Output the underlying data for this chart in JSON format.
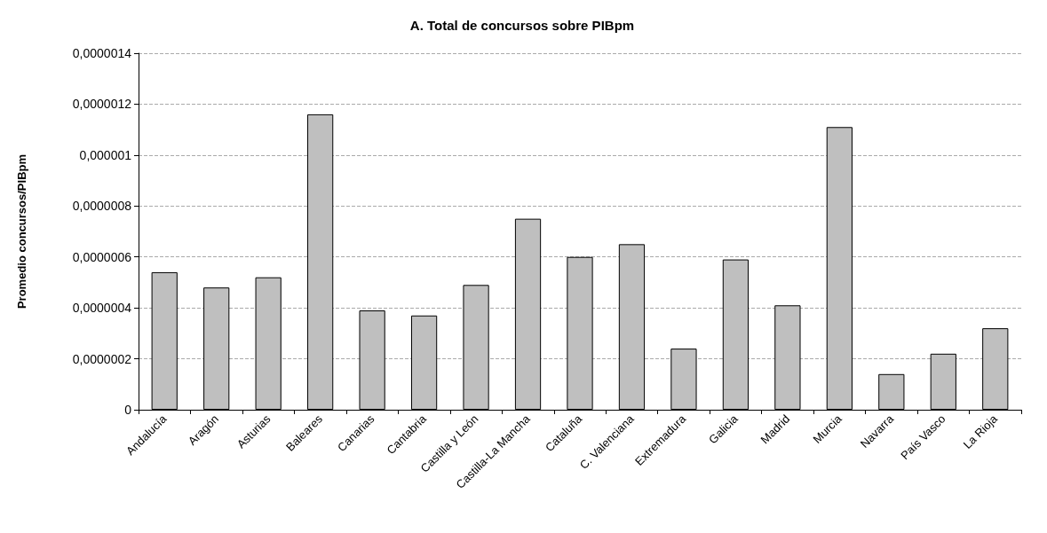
{
  "chart_data": {
    "type": "bar",
    "title": "A. Total de concursos sobre PIBpm",
    "ylabel": "Promedio concursos/PIBpm",
    "categories": [
      "Andalucía",
      "Aragón",
      "Asturias",
      "Baleares",
      "Canarias",
      "Cantabria",
      "Castilla y León",
      "Castilla-La Mancha",
      "Cataluña",
      "C. Valenciana",
      "Extremadura",
      "Galicia",
      "Madrid",
      "Murcia",
      "Navarra",
      "País Vasco",
      "La Rioja"
    ],
    "values": [
      5.4e-07,
      4.8e-07,
      5.2e-07,
      1.16e-06,
      3.9e-07,
      3.7e-07,
      4.9e-07,
      7.5e-07,
      6e-07,
      6.5e-07,
      2.4e-07,
      5.9e-07,
      4.1e-07,
      1.11e-06,
      1.4e-07,
      2.2e-07,
      3.2e-07
    ],
    "color": "#bfbfbf",
    "ylim": [
      0,
      1.4e-06
    ],
    "yticks": [
      0,
      {
        "value": 2e-07,
        "label": "0,0000002"
      },
      {
        "value": 4e-07,
        "label": "0,0000004"
      },
      {
        "value": 6e-07,
        "label": "0,0000006"
      },
      {
        "value": 8e-07,
        "label": "0,0000008"
      },
      {
        "value": 1e-06,
        "label": "0,000001"
      },
      {
        "value": 1.2e-06,
        "label": "0,0000012"
      },
      {
        "value": 1.4e-06,
        "label": "0,0000014"
      }
    ],
    "grid": "y"
  }
}
